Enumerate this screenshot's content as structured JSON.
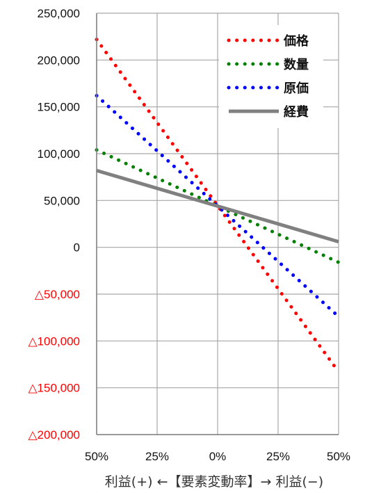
{
  "chart_data": {
    "type": "line",
    "x_tick_labels": [
      "50%",
      "25%",
      "0%",
      "25%",
      "50%"
    ],
    "x": [
      -50,
      50
    ],
    "xlim": [
      -50,
      50
    ],
    "ylim": [
      -200000,
      250000
    ],
    "y_ticks": [
      250000,
      200000,
      150000,
      100000,
      50000,
      0,
      -50000,
      -100000,
      -150000,
      -200000
    ],
    "y_tick_labels": [
      "250,000",
      "200,000",
      "150,000",
      "100,000",
      "50,000",
      "0",
      "△50,000",
      "△100,000",
      "△150,000",
      "△200,000"
    ],
    "negative_label_color": "#ff0000",
    "xlabel": "利益(+) ←【要素変動率】→ 利益(−)",
    "grid": true,
    "legend_position": "top-right",
    "series": [
      {
        "name": "価格",
        "values": [
          222000,
          -133000
        ],
        "color": "#ff0000",
        "style": "dotted"
      },
      {
        "name": "数量",
        "values": [
          104000,
          -16000
        ],
        "color": "#008000",
        "style": "dotted"
      },
      {
        "name": "原価",
        "values": [
          162000,
          -74000
        ],
        "color": "#0000ff",
        "style": "dotted"
      },
      {
        "name": "経費",
        "values": [
          82000,
          6000
        ],
        "color": "#808080",
        "style": "solid"
      }
    ]
  }
}
